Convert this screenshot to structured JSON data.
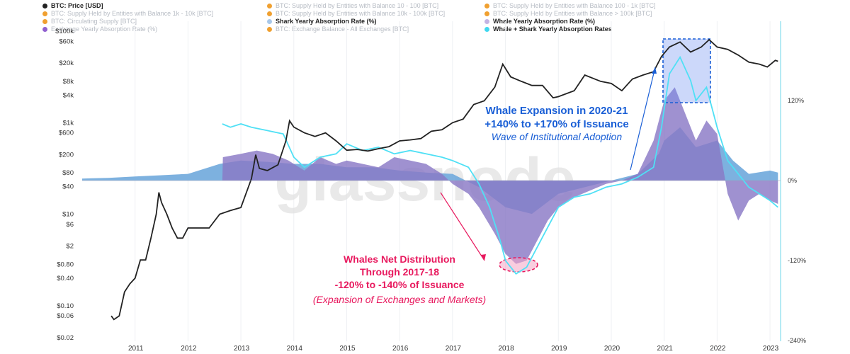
{
  "legend": [
    {
      "label": "BTC: Price [USD]",
      "color": "#222222",
      "active": true
    },
    {
      "label": "BTC: Supply Held by Entities with Balance 10 - 100 [BTC]",
      "color": "#f0a030",
      "active": false
    },
    {
      "label": "BTC: Supply Held by Entities with Balance 100 - 1k [BTC]",
      "color": "#f0a030",
      "active": false
    },
    {
      "label": "BTC: Supply Held by Entities with Balance 1k - 10k [BTC]",
      "color": "#f0a030",
      "active": false
    },
    {
      "label": "BTC: Supply Held by Entities with Balance 10k - 100k [BTC]",
      "color": "#f0a030",
      "active": false
    },
    {
      "label": "BTC: Supply Held by Entities with Balance > 100k [BTC]",
      "color": "#f0a030",
      "active": false
    },
    {
      "label": "BTC: Circulating Supply [BTC]",
      "color": "#f0a030",
      "active": false
    },
    {
      "label": "Shark Yearly Absorption Rate (%)",
      "color": "#a8c8ea",
      "active": true
    },
    {
      "label": "Whale Yearly Absorption Rate (%)",
      "color": "#c4b4e4",
      "active": true
    },
    {
      "label": "Exchange Yearly Absorption Rate (%)",
      "color": "#9060d0",
      "active": false
    },
    {
      "label": "BTC: Exchange Balance - All Exchanges [BTC]",
      "color": "#f0a030",
      "active": false
    },
    {
      "label": "Whale + Shark Yearly Absorption Rates",
      "color": "#40d8f0",
      "active": true
    }
  ],
  "watermark": "glassnode",
  "chart_data": {
    "type": "line",
    "x_axis": {
      "ticks": [
        "2011",
        "2012",
        "2013",
        "2014",
        "2015",
        "2016",
        "2017",
        "2018",
        "2019",
        "2020",
        "2021",
        "2022",
        "2023"
      ],
      "range": [
        2010.0,
        2023.2
      ]
    },
    "y_left": {
      "scale": "log",
      "unit": "USD",
      "ticks": [
        "$100k",
        "$60k",
        "$20k",
        "$8k",
        "$4k",
        "$1k",
        "$600",
        "$200",
        "$80",
        "$40",
        "$10",
        "$6",
        "$2",
        "$0.80",
        "$0.40",
        "$0.10",
        "$0.06",
        "$0.02"
      ]
    },
    "y_right": {
      "ticks": [
        "120%",
        "0%",
        "-120%",
        "-240%"
      ],
      "range": [
        -240,
        240
      ]
    },
    "series": [
      {
        "name": "BTC: Price [USD]",
        "color": "#222222",
        "points": [
          [
            2010.55,
            0.06
          ],
          [
            2010.6,
            0.05
          ],
          [
            2010.7,
            0.06
          ],
          [
            2010.8,
            0.2
          ],
          [
            2010.9,
            0.3
          ],
          [
            2011.0,
            0.4
          ],
          [
            2011.1,
            1
          ],
          [
            2011.2,
            1
          ],
          [
            2011.3,
            3
          ],
          [
            2011.4,
            10
          ],
          [
            2011.45,
            30
          ],
          [
            2011.5,
            18
          ],
          [
            2011.6,
            10
          ],
          [
            2011.7,
            5
          ],
          [
            2011.8,
            3
          ],
          [
            2011.9,
            3
          ],
          [
            2012.0,
            5
          ],
          [
            2012.1,
            5
          ],
          [
            2012.2,
            5
          ],
          [
            2012.4,
            5
          ],
          [
            2012.6,
            10
          ],
          [
            2012.8,
            12
          ],
          [
            2013.0,
            14
          ],
          [
            2013.2,
            60
          ],
          [
            2013.28,
            200
          ],
          [
            2013.35,
            100
          ],
          [
            2013.5,
            90
          ],
          [
            2013.7,
            120
          ],
          [
            2013.85,
            400
          ],
          [
            2013.92,
            1100
          ],
          [
            2014.0,
            800
          ],
          [
            2014.2,
            600
          ],
          [
            2014.4,
            500
          ],
          [
            2014.6,
            600
          ],
          [
            2014.8,
            400
          ],
          [
            2015.0,
            250
          ],
          [
            2015.2,
            260
          ],
          [
            2015.4,
            240
          ],
          [
            2015.6,
            270
          ],
          [
            2015.8,
            300
          ],
          [
            2016.0,
            400
          ],
          [
            2016.2,
            420
          ],
          [
            2016.4,
            450
          ],
          [
            2016.6,
            650
          ],
          [
            2016.8,
            700
          ],
          [
            2017.0,
            1000
          ],
          [
            2017.2,
            1200
          ],
          [
            2017.4,
            2500
          ],
          [
            2017.6,
            3000
          ],
          [
            2017.8,
            6000
          ],
          [
            2017.95,
            19000
          ],
          [
            2018.1,
            10000
          ],
          [
            2018.3,
            8000
          ],
          [
            2018.5,
            6500
          ],
          [
            2018.7,
            6500
          ],
          [
            2018.9,
            3500
          ],
          [
            2019.0,
            3700
          ],
          [
            2019.3,
            5000
          ],
          [
            2019.5,
            11000
          ],
          [
            2019.8,
            8000
          ],
          [
            2020.0,
            7200
          ],
          [
            2020.2,
            5000
          ],
          [
            2020.4,
            9000
          ],
          [
            2020.6,
            11000
          ],
          [
            2020.8,
            13000
          ],
          [
            2020.95,
            28000
          ],
          [
            2021.1,
            45000
          ],
          [
            2021.3,
            58000
          ],
          [
            2021.5,
            35000
          ],
          [
            2021.7,
            45000
          ],
          [
            2021.85,
            65000
          ],
          [
            2022.0,
            45000
          ],
          [
            2022.2,
            40000
          ],
          [
            2022.4,
            30000
          ],
          [
            2022.6,
            21000
          ],
          [
            2022.8,
            19000
          ],
          [
            2022.95,
            16500
          ],
          [
            2023.1,
            23000
          ],
          [
            2023.15,
            22000
          ]
        ]
      },
      {
        "name": "Whale Yearly Absorption Rate (%)",
        "color": "#8a79c6",
        "points": [
          [
            2012.65,
            0
          ],
          [
            2012.66,
            35
          ],
          [
            2013.0,
            40
          ],
          [
            2013.3,
            45
          ],
          [
            2013.6,
            40
          ],
          [
            2013.9,
            30
          ],
          [
            2014.2,
            15
          ],
          [
            2014.5,
            35
          ],
          [
            2014.8,
            25
          ],
          [
            2015.0,
            30
          ],
          [
            2015.3,
            25
          ],
          [
            2015.6,
            20
          ],
          [
            2015.9,
            35
          ],
          [
            2016.2,
            30
          ],
          [
            2016.5,
            25
          ],
          [
            2016.8,
            10
          ],
          [
            2017.0,
            -5
          ],
          [
            2017.3,
            -20
          ],
          [
            2017.5,
            -40
          ],
          [
            2017.8,
            -80
          ],
          [
            2018.0,
            -110
          ],
          [
            2018.2,
            -125
          ],
          [
            2018.4,
            -120
          ],
          [
            2018.6,
            -90
          ],
          [
            2018.8,
            -60
          ],
          [
            2019.0,
            -40
          ],
          [
            2019.3,
            -25
          ],
          [
            2019.6,
            -15
          ],
          [
            2019.9,
            -5
          ],
          [
            2020.2,
            0
          ],
          [
            2020.5,
            10
          ],
          [
            2020.8,
            60
          ],
          [
            2021.0,
            120
          ],
          [
            2021.2,
            140
          ],
          [
            2021.4,
            100
          ],
          [
            2021.6,
            60
          ],
          [
            2021.8,
            90
          ],
          [
            2022.0,
            70
          ],
          [
            2022.2,
            -20
          ],
          [
            2022.4,
            -60
          ],
          [
            2022.6,
            -30
          ],
          [
            2022.8,
            -20
          ],
          [
            2023.0,
            -30
          ],
          [
            2023.15,
            -35
          ]
        ]
      },
      {
        "name": "Shark Yearly Absorption Rate (%)",
        "color": "#6fa8dc",
        "points": [
          [
            2010.0,
            3
          ],
          [
            2010.5,
            4
          ],
          [
            2011.0,
            6
          ],
          [
            2011.5,
            8
          ],
          [
            2012.0,
            10
          ],
          [
            2012.6,
            25
          ],
          [
            2013.0,
            30
          ],
          [
            2013.5,
            28
          ],
          [
            2014.0,
            25
          ],
          [
            2014.5,
            25
          ],
          [
            2015.0,
            20
          ],
          [
            2015.5,
            20
          ],
          [
            2016.0,
            15
          ],
          [
            2016.5,
            12
          ],
          [
            2017.0,
            10
          ],
          [
            2017.5,
            -10
          ],
          [
            2018.0,
            -40
          ],
          [
            2018.5,
            -50
          ],
          [
            2019.0,
            -20
          ],
          [
            2019.5,
            -10
          ],
          [
            2020.0,
            0
          ],
          [
            2020.5,
            10
          ],
          [
            2020.9,
            40
          ],
          [
            2021.0,
            60
          ],
          [
            2021.3,
            80
          ],
          [
            2021.6,
            50
          ],
          [
            2022.0,
            60
          ],
          [
            2022.3,
            30
          ],
          [
            2022.6,
            10
          ],
          [
            2023.0,
            15
          ],
          [
            2023.15,
            12
          ]
        ]
      },
      {
        "name": "Whale + Shark Yearly Absorption Rates",
        "color": "#4fe0f5",
        "points": [
          [
            2012.65,
            85
          ],
          [
            2012.8,
            80
          ],
          [
            2013.0,
            85
          ],
          [
            2013.2,
            80
          ],
          [
            2013.5,
            75
          ],
          [
            2013.8,
            70
          ],
          [
            2014.0,
            35
          ],
          [
            2014.2,
            20
          ],
          [
            2014.5,
            35
          ],
          [
            2014.8,
            40
          ],
          [
            2015.0,
            55
          ],
          [
            2015.3,
            45
          ],
          [
            2015.6,
            50
          ],
          [
            2015.9,
            40
          ],
          [
            2016.2,
            45
          ],
          [
            2016.5,
            40
          ],
          [
            2016.8,
            35
          ],
          [
            2017.0,
            30
          ],
          [
            2017.3,
            20
          ],
          [
            2017.5,
            -5
          ],
          [
            2017.7,
            -40
          ],
          [
            2017.9,
            -90
          ],
          [
            2018.0,
            -120
          ],
          [
            2018.2,
            -140
          ],
          [
            2018.4,
            -130
          ],
          [
            2018.6,
            -100
          ],
          [
            2018.8,
            -70
          ],
          [
            2019.0,
            -40
          ],
          [
            2019.3,
            -25
          ],
          [
            2019.6,
            -20
          ],
          [
            2019.9,
            -10
          ],
          [
            2020.2,
            -5
          ],
          [
            2020.5,
            5
          ],
          [
            2020.8,
            20
          ],
          [
            2020.95,
            80
          ],
          [
            2021.1,
            160
          ],
          [
            2021.3,
            185
          ],
          [
            2021.5,
            150
          ],
          [
            2021.6,
            120
          ],
          [
            2021.8,
            140
          ],
          [
            2022.0,
            80
          ],
          [
            2022.2,
            30
          ],
          [
            2022.4,
            10
          ],
          [
            2022.6,
            -10
          ],
          [
            2022.8,
            -20
          ],
          [
            2023.0,
            -30
          ],
          [
            2023.15,
            -40
          ]
        ]
      }
    ],
    "annotations": [
      {
        "title": "Whale Expansion in 2020-21",
        "subtitle": "+140% to +170% of Issuance",
        "note": "Wave of Institutional Adoption",
        "color": "#1a5fd6"
      },
      {
        "title": "Whales Net Distribution",
        "subtitle": "Through 2017-18",
        "range": "-120% to -140% of Issuance",
        "note": "(Expansion of Exchanges and Markets)",
        "color": "#e8195e"
      }
    ]
  }
}
